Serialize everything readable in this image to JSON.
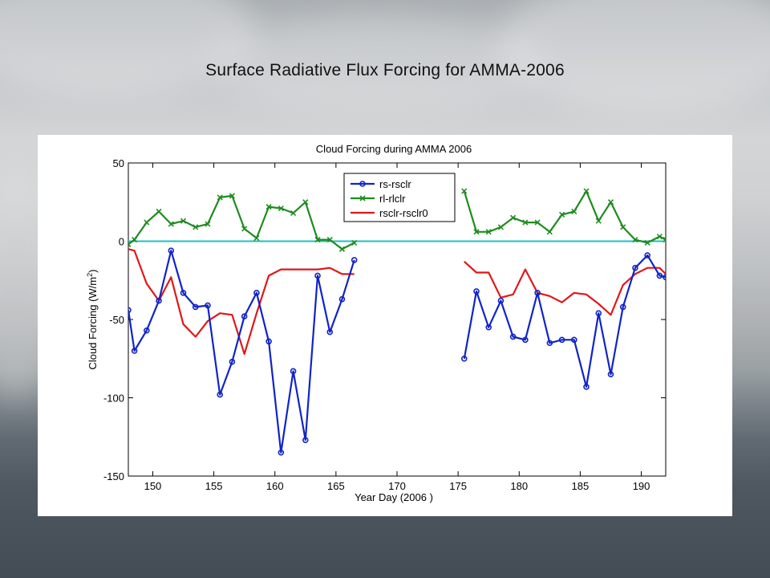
{
  "slide": {
    "title": "Surface Radiative Flux Forcing for AMMA-2006"
  },
  "chart_data": {
    "type": "line",
    "title": "Cloud Forcing during AMMA 2006",
    "xlabel": "Year Day (2006 )",
    "ylabel": "Cloud Forcing (W/m",
    "ylabel_sup": "2",
    "ylabel_end": ")",
    "xlim": [
      148,
      192
    ],
    "ylim": [
      -150,
      50
    ],
    "xticks": [
      150,
      155,
      160,
      165,
      170,
      175,
      180,
      185,
      190
    ],
    "yticks": [
      -150,
      -100,
      -50,
      0,
      50
    ],
    "grid": false,
    "legend_position": "top-center",
    "zero_line": {
      "y": 0,
      "color": "#1fbfbf"
    },
    "series": [
      {
        "name": "rs-rsclr",
        "color": "#1024c8",
        "marker": "circle",
        "segments": [
          {
            "x": [
              148,
              148.5,
              149.5,
              150.5,
              151.5,
              152.5,
              153.5,
              154.5,
              155.5,
              156.5,
              157.5,
              158.5,
              159.5,
              160.5,
              161.5,
              162.5,
              163.5,
              164.5,
              165.5,
              166.5
            ],
            "y": [
              -44,
              -70,
              -57,
              -38,
              -6,
              -33,
              -42,
              -41,
              -98,
              -77,
              -48,
              -33,
              -64,
              -135,
              -83,
              -127,
              -22,
              -58,
              -37,
              -12
            ]
          },
          {
            "x": [
              175.5,
              176.5,
              177.5,
              178.5,
              179.5,
              180.5,
              181.5,
              182.5,
              183.5,
              184.5,
              185.5,
              186.5,
              187.5,
              188.5,
              189.5,
              190.5,
              191.5,
              192
            ],
            "y": [
              -75,
              -32,
              -55,
              -38,
              -61,
              -63,
              -33,
              -65,
              -63,
              -63,
              -93,
              -46,
              -85,
              -42,
              -17,
              -9,
              -22,
              -23
            ]
          }
        ]
      },
      {
        "name": "rl-rlclr",
        "color": "#1e8c1e",
        "marker": "x",
        "segments": [
          {
            "x": [
              148,
              148.5,
              149.5,
              150.5,
              151.5,
              152.5,
              153.5,
              154.5,
              155.5,
              156.5,
              157.5,
              158.5,
              159.5,
              160.5,
              161.5,
              162.5,
              163.5,
              164.5,
              165.5,
              166.5
            ],
            "y": [
              -2,
              1,
              12,
              19,
              11,
              13,
              9,
              11,
              28,
              29,
              8,
              2,
              22,
              21,
              18,
              25,
              1,
              1,
              -5,
              -1
            ]
          },
          {
            "x": [
              175.5,
              176.5,
              177.5,
              178.5,
              179.5,
              180.5,
              181.5,
              182.5,
              183.5,
              184.5,
              185.5,
              186.5,
              187.5,
              188.5,
              189.5,
              190.5,
              191.5,
              192
            ],
            "y": [
              32,
              6,
              6,
              9,
              15,
              12,
              12,
              6,
              17,
              19,
              32,
              13,
              25,
              9,
              1,
              -1,
              3,
              1
            ]
          }
        ]
      },
      {
        "name": "rsclr-rsclr0",
        "color": "#e01818",
        "marker": "none",
        "segments": [
          {
            "x": [
              148,
              148.5,
              149.5,
              150.5,
              151.5,
              152.5,
              153.5,
              154.5,
              155.5,
              156.5,
              157.5,
              158.5,
              159.5,
              160.5,
              161.5,
              162.5,
              163.5,
              164.5,
              165.5,
              166.5
            ],
            "y": [
              -5,
              -6,
              -27,
              -38,
              -23,
              -53,
              -61,
              -51,
              -46,
              -47,
              -72,
              -46,
              -22,
              -18,
              -18,
              -18,
              -18,
              -17,
              -21,
              -21
            ]
          },
          {
            "x": [
              175.5,
              176.5,
              177.5,
              178.5,
              179.5,
              180.5,
              181.5,
              182.5,
              183.5,
              184.5,
              185.5,
              186.5,
              187.5,
              188.5,
              189.5,
              190.5,
              191.5,
              192
            ],
            "y": [
              -13,
              -20,
              -20,
              -36,
              -34,
              -18,
              -33,
              -35,
              -39,
              -33,
              -34,
              -40,
              -47,
              -28,
              -21,
              -17,
              -17,
              -21
            ]
          }
        ]
      }
    ]
  }
}
